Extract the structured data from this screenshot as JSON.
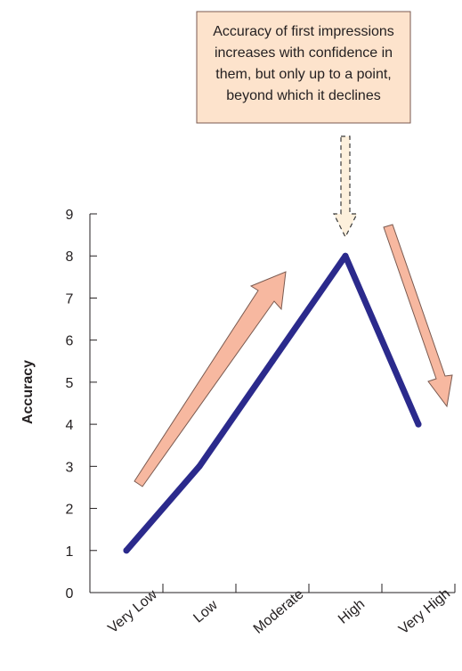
{
  "chart_data": {
    "type": "line",
    "ylabel": "Accuracy",
    "xlabel": "",
    "categories": [
      "Very Low",
      "Low",
      "Moderate",
      "High",
      "Very High"
    ],
    "values": [
      1,
      3,
      5.5,
      8,
      4
    ],
    "ylim": [
      0,
      9
    ],
    "yticks": [
      0,
      1,
      2,
      3,
      4,
      5,
      6,
      7,
      8,
      9
    ],
    "grid": false,
    "legend": "none",
    "annotations": [
      {
        "text_lines": [
          "Accuracy of first impressions",
          "increases with confidence in",
          "them, but only up to a point,",
          "beyond which it declines"
        ]
      }
    ],
    "colors": {
      "line": "#2b2a8c",
      "arrow_fill": "#f7b8a0",
      "arrow_stroke": "#7a5a50",
      "callout_fill": "#fde3cc",
      "callout_arrow_fill": "#fdf0dc",
      "axis": "#231f20"
    }
  }
}
